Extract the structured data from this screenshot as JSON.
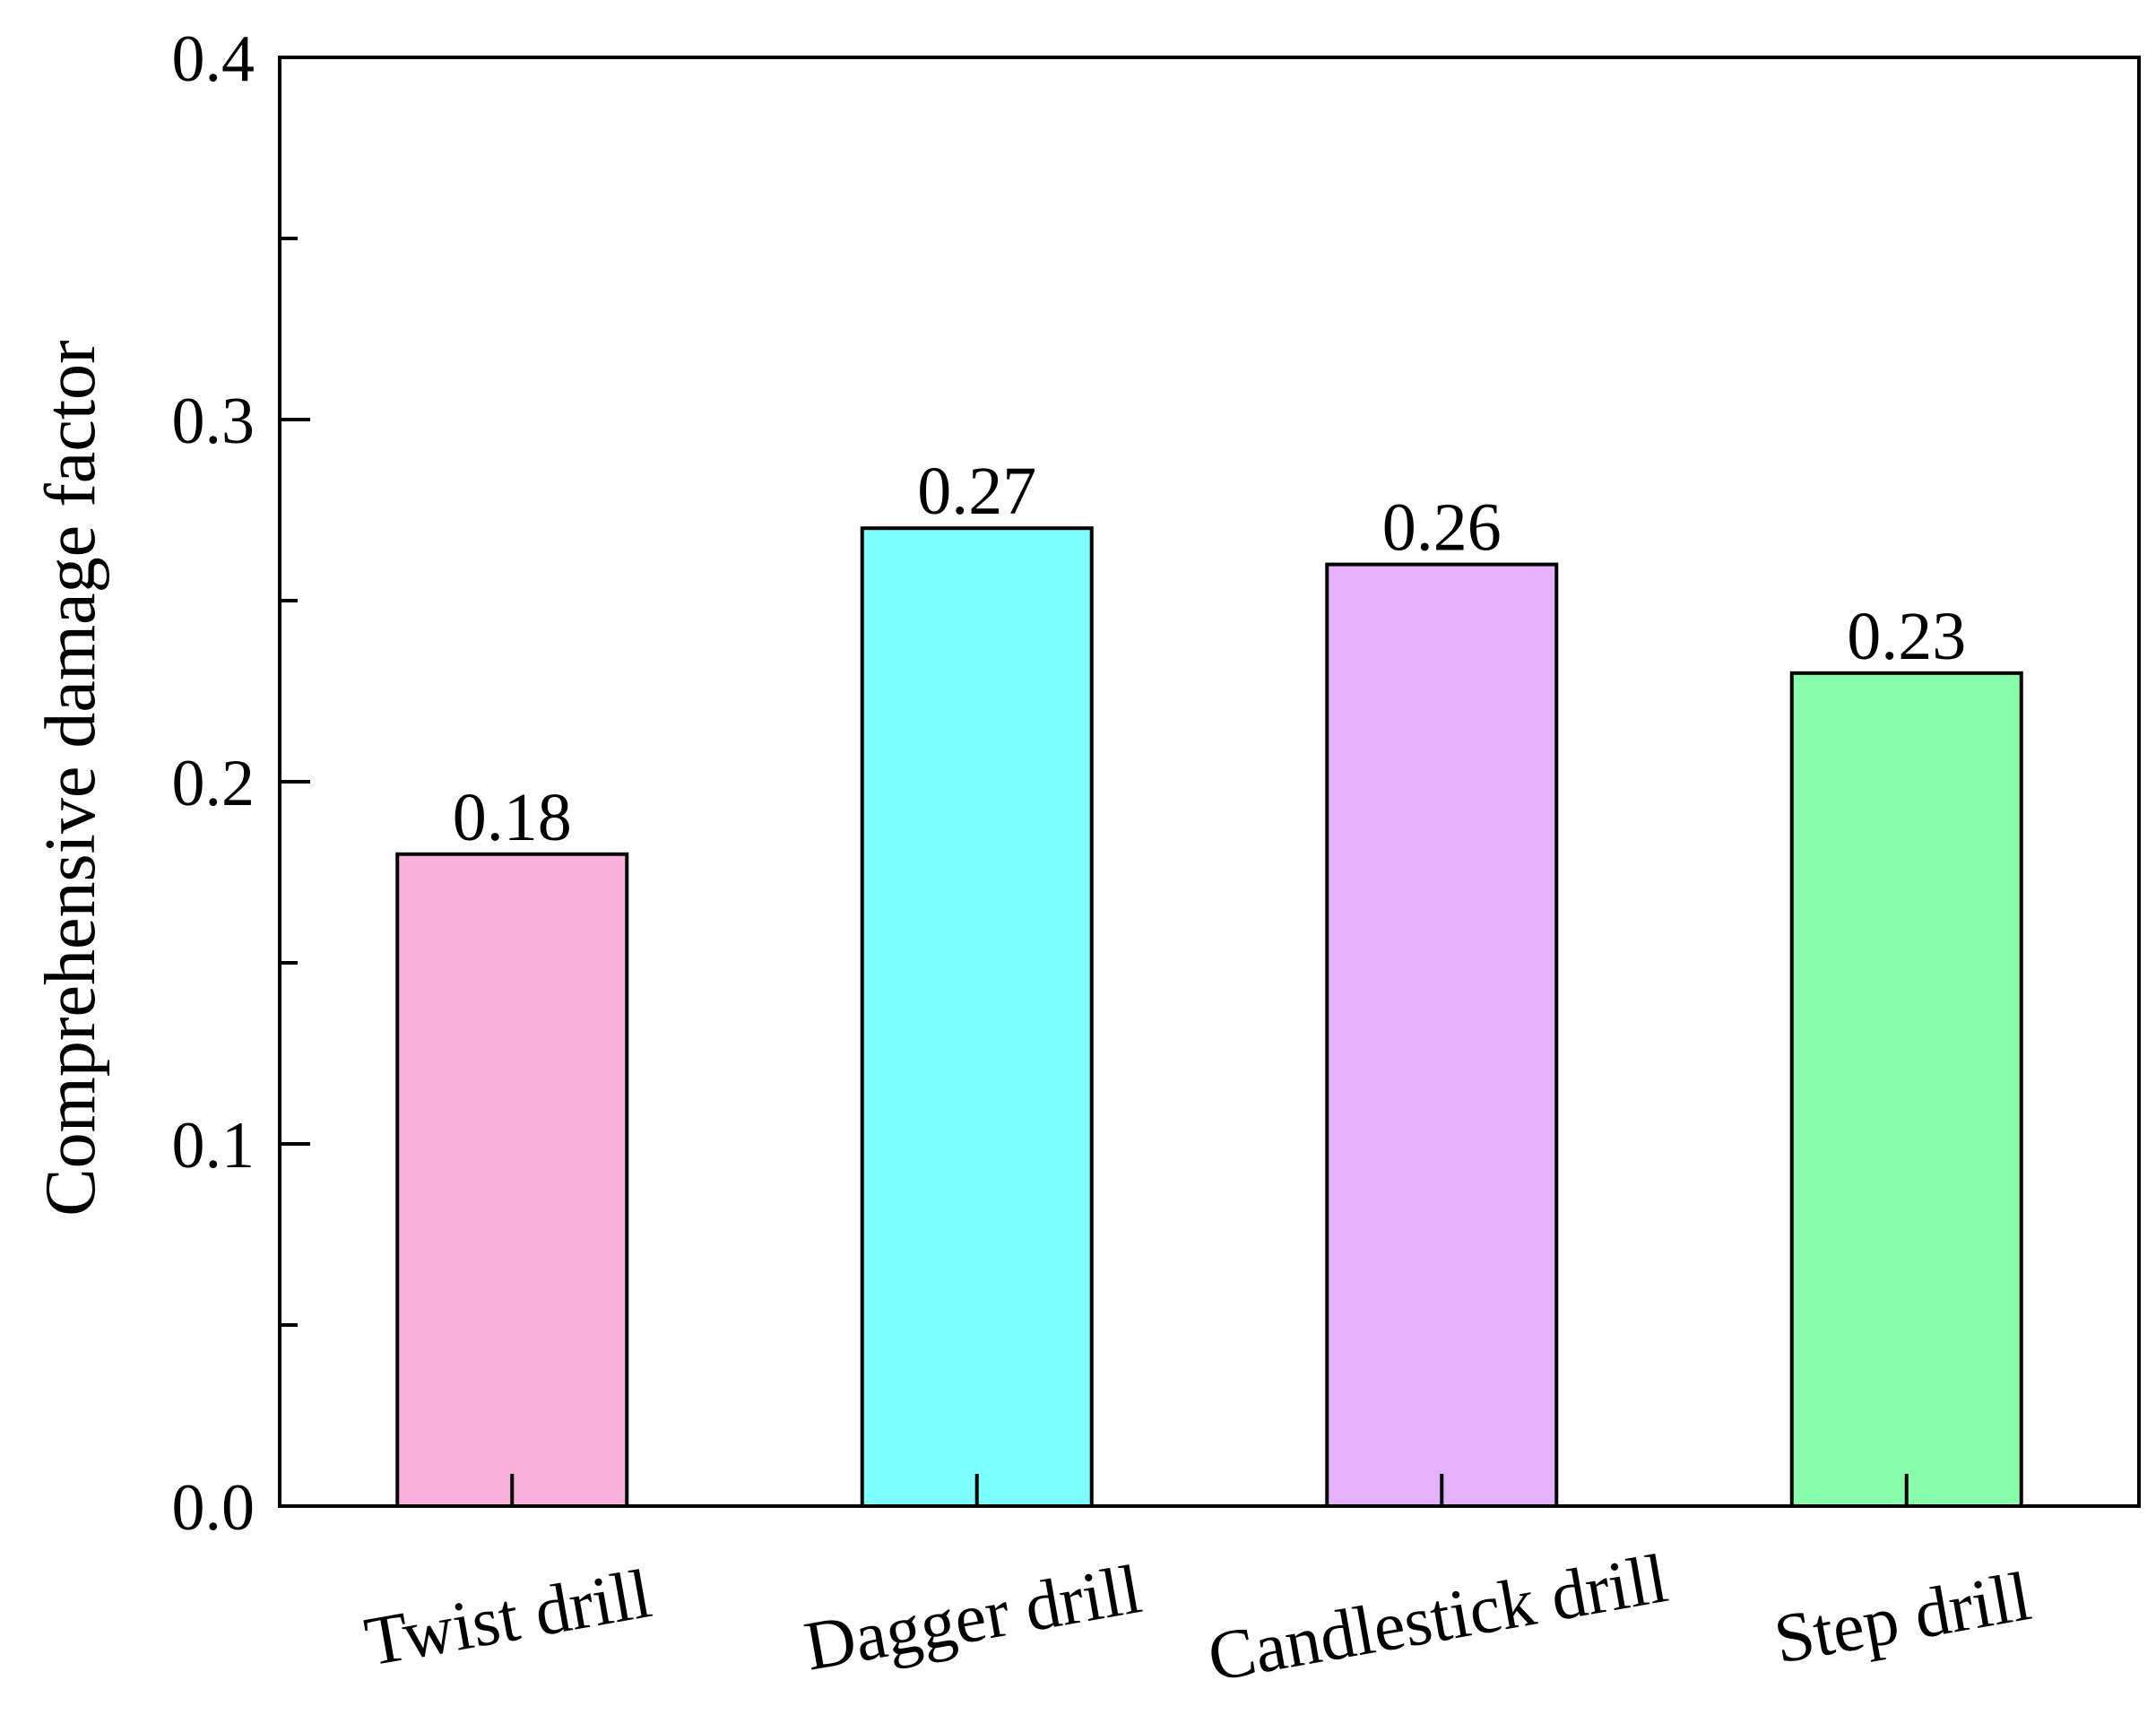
{
  "chart_data": {
    "type": "bar",
    "title": "",
    "xlabel": "",
    "ylabel": "Comprehensive damage factor",
    "ylim": [
      0.0,
      0.4
    ],
    "yticks": [
      "0.0",
      "0.1",
      "0.2",
      "0.3",
      "0.4"
    ],
    "grid": false,
    "categories": [
      "Twist drill",
      "Dagger drill",
      "Candlestick drill",
      "Step drill"
    ],
    "values": [
      0.18,
      0.27,
      0.26,
      0.23
    ],
    "value_labels": [
      "0.18",
      "0.27",
      "0.26",
      "0.23"
    ],
    "colors": [
      "#fbb1de",
      "#7cfefe",
      "#e5b1fc",
      "#87fdac"
    ],
    "bar_edge_color": "#000000",
    "axis_color": "#000000"
  }
}
